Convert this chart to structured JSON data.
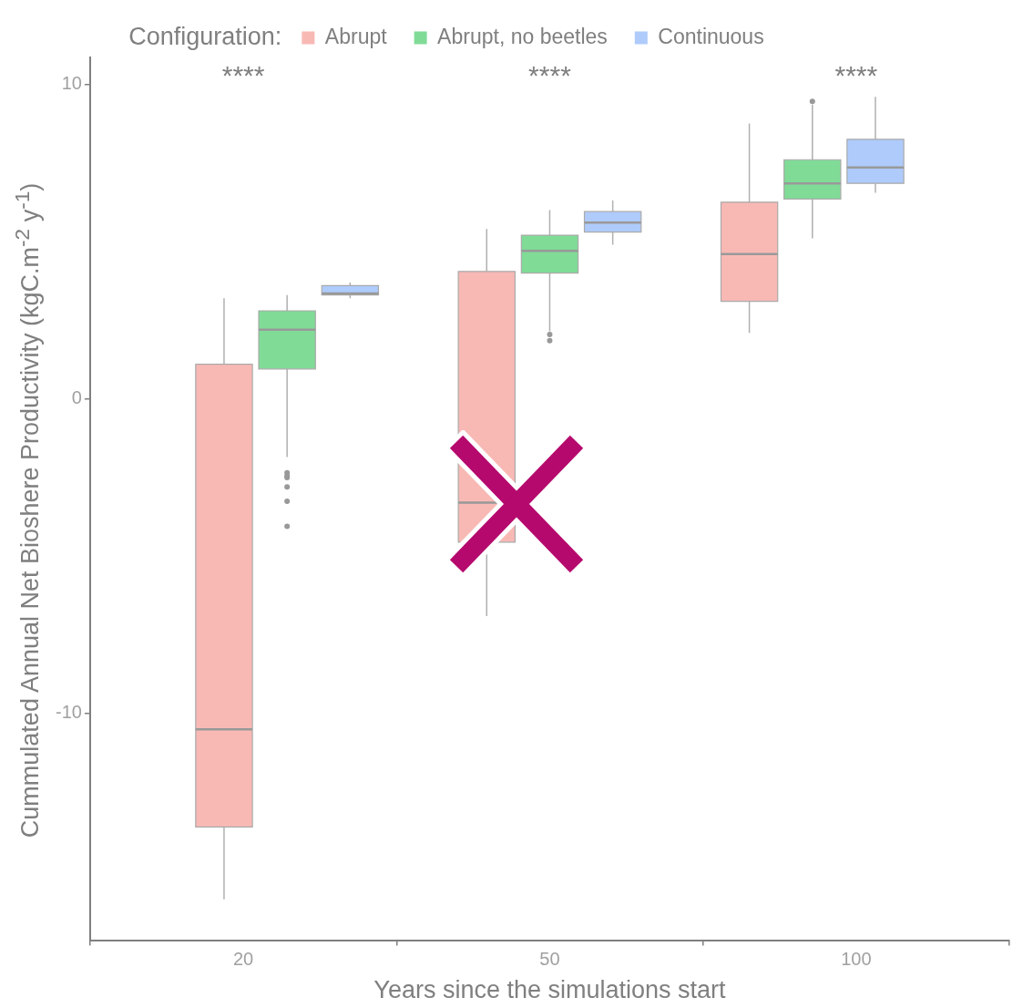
{
  "chart_data": {
    "type": "box",
    "xlabel": "Years since the simulations start",
    "ylabel": "Cummulated Annual Net Bioshere Productivity  (kgC.m$^{-2}$ y$^{-1}$)",
    "legend_title": "Configuration:",
    "legend": "top",
    "categories": [
      "20",
      "50",
      "100"
    ],
    "ylim": [
      -17.2,
      10.85
    ],
    "yticks": [
      -10,
      0,
      10
    ],
    "series": [
      {
        "name": "Abrupt",
        "color": "#f8b9b5",
        "boxes": [
          {
            "low": -15.9,
            "q1": -13.6,
            "median": -10.5,
            "q3": 1.1,
            "high": 3.2
          },
          {
            "low": -6.9,
            "q1": -4.55,
            "median": -3.3,
            "q3": 4.05,
            "high": 5.4
          },
          {
            "low": 2.1,
            "q1": 3.1,
            "median": 4.6,
            "q3": 6.25,
            "high": 8.75
          }
        ]
      },
      {
        "name": "Abrupt, no beetles",
        "color": "#80db97",
        "boxes": [
          {
            "low": -1.85,
            "q1": 0.95,
            "median": 2.2,
            "q3": 2.8,
            "high": 3.3,
            "outliers": [
              -2.35,
              -2.45,
              -2.5,
              -2.8,
              -3.25,
              -4.05
            ]
          },
          {
            "low": 2.15,
            "q1": 4.0,
            "median": 4.7,
            "q3": 5.2,
            "high": 6.0,
            "outliers": [
              2.05,
              1.85
            ]
          },
          {
            "low": 5.1,
            "q1": 6.35,
            "median": 6.85,
            "q3": 7.6,
            "high": 9.35,
            "outliers": [
              9.45
            ]
          }
        ]
      },
      {
        "name": "Continuous",
        "color": "#aecbfb",
        "boxes": [
          {
            "low": 3.2,
            "q1": 3.3,
            "median": 3.35,
            "q3": 3.6,
            "high": 3.7
          },
          {
            "low": 4.9,
            "q1": 5.3,
            "median": 5.6,
            "q3": 5.95,
            "high": 6.3
          },
          {
            "low": 6.55,
            "q1": 6.85,
            "median": 7.35,
            "q3": 8.25,
            "high": 9.6
          }
        ]
      }
    ],
    "annotations": [
      "****",
      "****",
      "****"
    ]
  }
}
